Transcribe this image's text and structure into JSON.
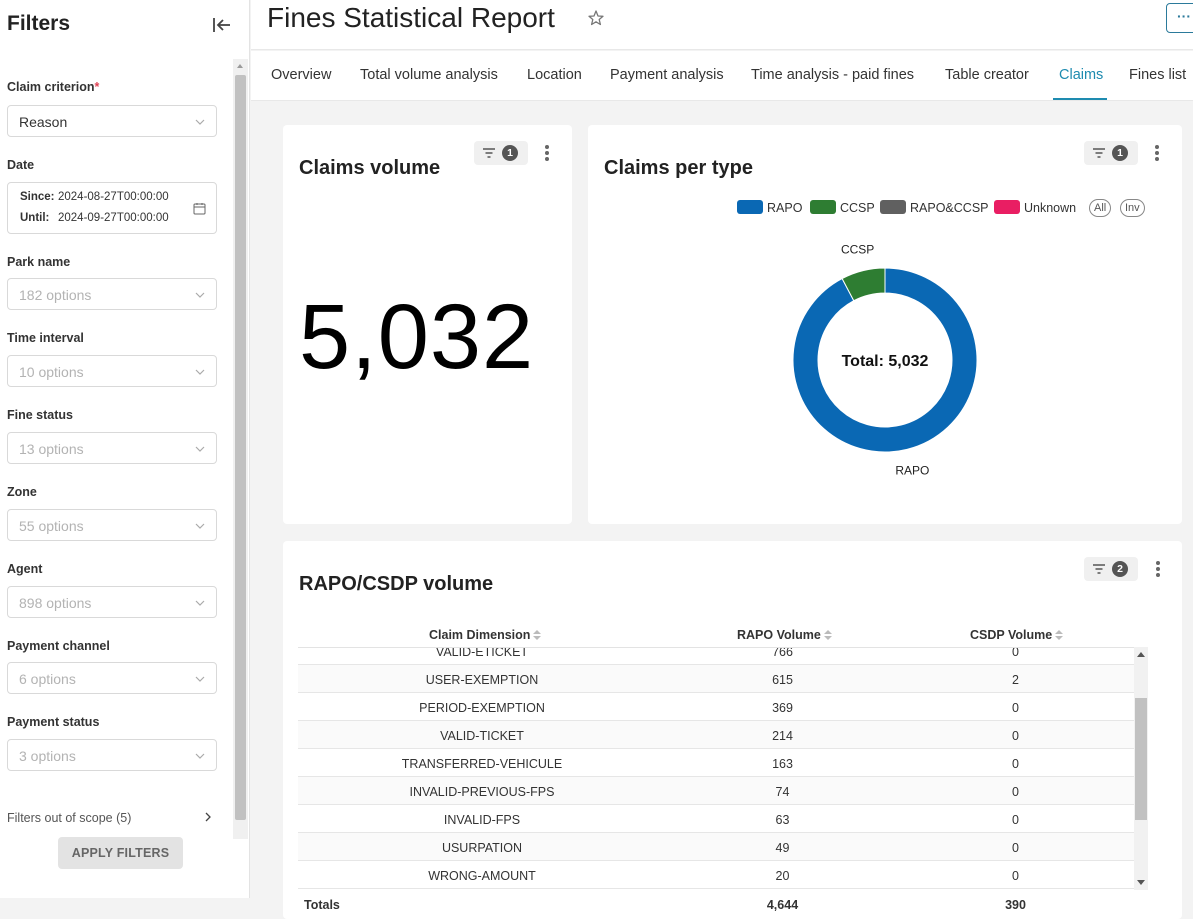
{
  "sidebar": {
    "title": "Filters",
    "filters": [
      {
        "label": "Claim criterion",
        "required": "*",
        "value": "Reason"
      },
      {
        "label": "Date",
        "since_label": "Since:",
        "since": "2024-08-27T00:00:00",
        "until_label": "Until:",
        "until": "2024-09-27T00:00:00"
      },
      {
        "label": "Park name",
        "placeholder": "182 options"
      },
      {
        "label": "Time interval",
        "placeholder": "10 options"
      },
      {
        "label": "Fine status",
        "placeholder": "13 options"
      },
      {
        "label": "Zone",
        "placeholder": "55 options"
      },
      {
        "label": "Agent",
        "placeholder": "898 options"
      },
      {
        "label": "Payment channel",
        "placeholder": "6 options"
      },
      {
        "label": "Payment status",
        "placeholder": "3 options"
      }
    ],
    "out_of_scope": "Filters out of scope (5)",
    "apply_label": "APPLY FILTERS"
  },
  "header": {
    "title": "Fines Statistical Report",
    "more_label": "···"
  },
  "tabs": [
    {
      "label": "Overview"
    },
    {
      "label": "Total volume analysis"
    },
    {
      "label": "Location"
    },
    {
      "label": "Payment analysis"
    },
    {
      "label": "Time analysis - paid fines"
    },
    {
      "label": "Table creator"
    },
    {
      "label": "Claims",
      "active": true
    },
    {
      "label": "Fines list"
    }
  ],
  "claims_volume": {
    "title": "Claims volume",
    "filter_count": "1",
    "value": "5,032"
  },
  "claims_per_type": {
    "title": "Claims per type",
    "filter_count": "1",
    "legend": [
      {
        "label": "RAPO",
        "color": "#0a68b4"
      },
      {
        "label": "CCSP",
        "color": "#2e7d32"
      },
      {
        "label": "RAPO&CCSP",
        "color": "#606060"
      },
      {
        "label": "Unknown",
        "color": "#e91e63"
      }
    ],
    "legend_all": "All",
    "legend_inv": "Inv",
    "center_label": "Total: 5,032"
  },
  "chart_data": {
    "type": "pie",
    "categories": [
      "RAPO",
      "CCSP"
    ],
    "values": [
      4644,
      388
    ],
    "slice_labels": [
      "RAPO",
      "CCSP"
    ],
    "colors": [
      "#0a68b4",
      "#2e7d32"
    ],
    "donut": true
  },
  "rapo_table": {
    "title": "RAPO/CSDP volume",
    "filter_count": "2",
    "columns": [
      "Claim Dimension",
      "RAPO Volume",
      "CSDP Volume"
    ],
    "rows": [
      [
        "VALID-ETICKET",
        "766",
        "0"
      ],
      [
        "USER-EXEMPTION",
        "615",
        "2"
      ],
      [
        "PERIOD-EXEMPTION",
        "369",
        "0"
      ],
      [
        "VALID-TICKET",
        "214",
        "0"
      ],
      [
        "TRANSFERRED-VEHICULE",
        "163",
        "0"
      ],
      [
        "INVALID-PREVIOUS-FPS",
        "74",
        "0"
      ],
      [
        "INVALID-FPS",
        "63",
        "0"
      ],
      [
        "USURPATION",
        "49",
        "0"
      ],
      [
        "WRONG-AMOUNT",
        "20",
        "0"
      ]
    ],
    "totals_label": "Totals",
    "totals": [
      "4,644",
      "390"
    ]
  }
}
